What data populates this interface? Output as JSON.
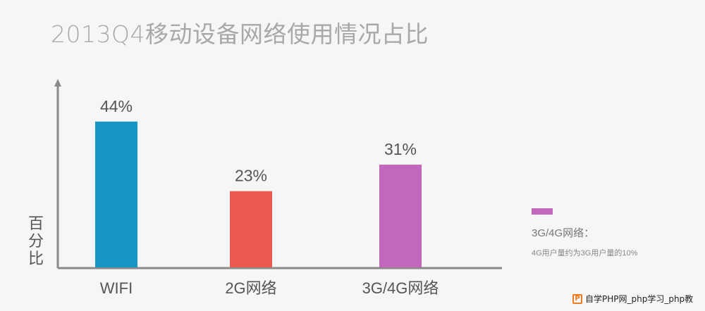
{
  "colors": {
    "axis": "#8a8a8a",
    "label": "#555555",
    "bars": [
      "#1596c4",
      "#ea5a4e",
      "#c267bb"
    ]
  },
  "chart_data": {
    "type": "bar",
    "title": "2013Q4移动设备网络使用情况占比",
    "ylabel": "百分比",
    "xlabel": "",
    "categories": [
      "WIFI",
      "2G网络",
      "3G/4G网络"
    ],
    "values": [
      44,
      23,
      31
    ],
    "value_labels": [
      "44%",
      "23%",
      "31%"
    ],
    "ylim": [
      0,
      55
    ],
    "grid": false,
    "legend": "none"
  },
  "note": {
    "heading": "3G/4G网络：",
    "body": "4G用户量约为3G用户量的10%"
  },
  "watermark": {
    "icon": "P",
    "text": "自学PHP网_php学习_php教"
  }
}
